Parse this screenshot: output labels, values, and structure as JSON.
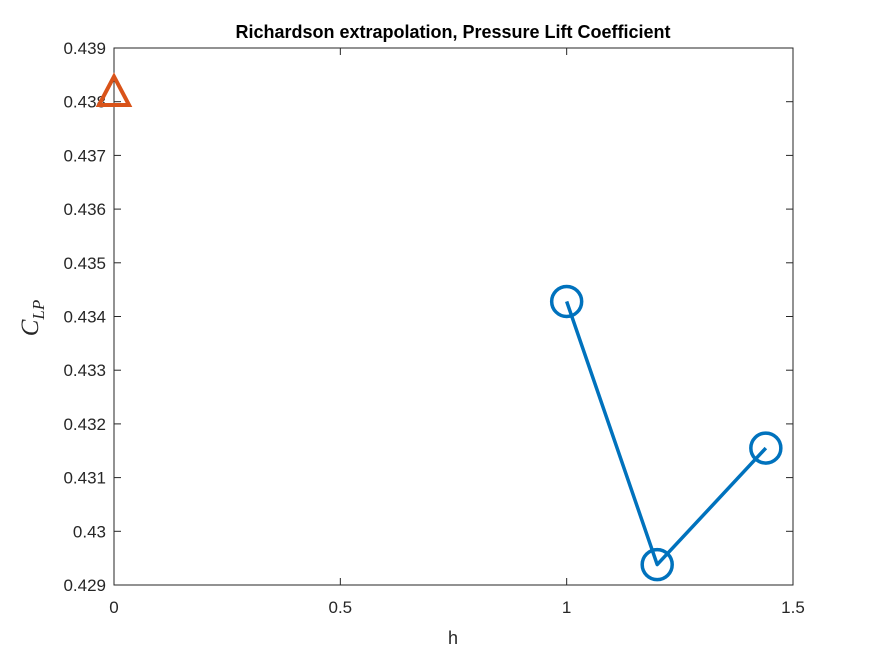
{
  "chart_data": {
    "type": "line",
    "title": "Richardson extrapolation, Pressure Lift Coefficient",
    "xlabel": "h",
    "ylabel": {
      "main": "C",
      "sub": "LP"
    },
    "xlim": [
      0,
      1.5
    ],
    "ylim": [
      0.429,
      0.439
    ],
    "xticks": [
      0,
      0.5,
      1,
      1.5
    ],
    "xtick_labels": [
      "0",
      "0.5",
      "1",
      "1.5"
    ],
    "yticks": [
      0.429,
      0.43,
      0.431,
      0.432,
      0.433,
      0.434,
      0.435,
      0.436,
      0.437,
      0.438,
      0.439
    ],
    "ytick_labels": [
      "0.429",
      "0.43",
      "0.431",
      "0.432",
      "0.433",
      "0.434",
      "0.435",
      "0.436",
      "0.437",
      "0.438",
      "0.439"
    ],
    "grid": false,
    "series": [
      {
        "marker": "circle",
        "line": true,
        "color": "#0072BD",
        "x": [
          1.0,
          1.2,
          1.44
        ],
        "y": [
          0.43428,
          0.42938,
          0.43155
        ]
      },
      {
        "marker": "triangle",
        "line": false,
        "color": "#D95319",
        "x": [
          0
        ],
        "y": [
          0.43819
        ]
      }
    ]
  }
}
